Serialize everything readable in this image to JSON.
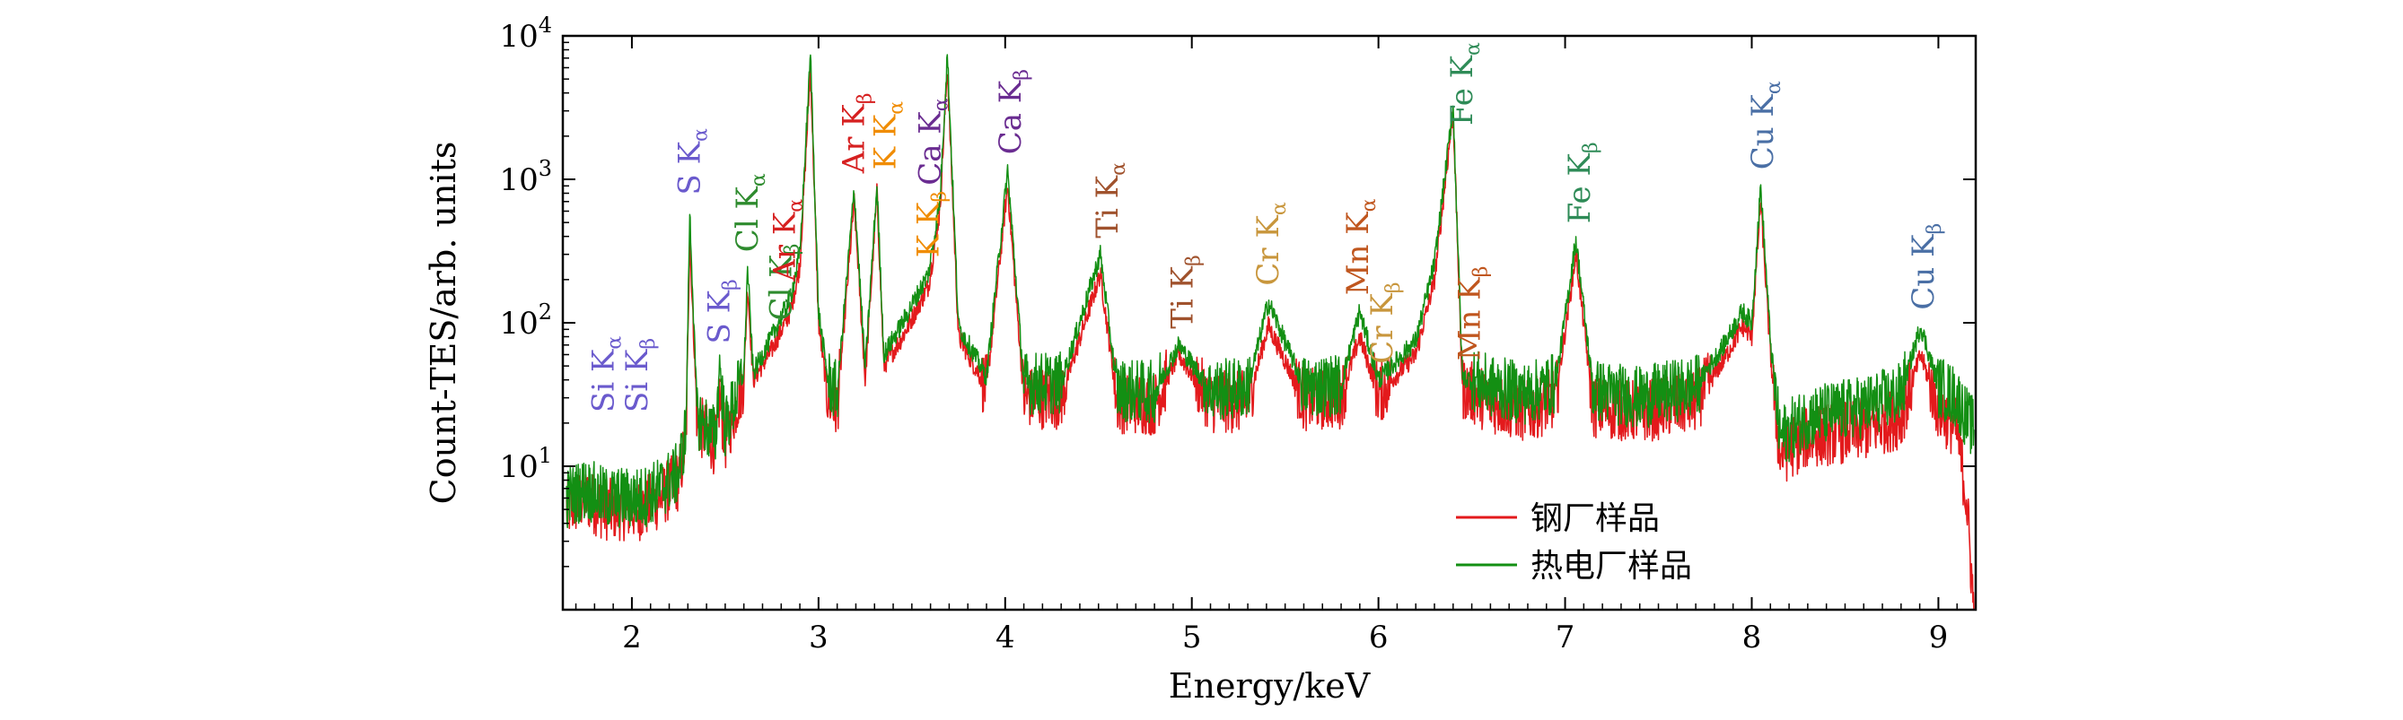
{
  "chart_data": {
    "type": "line",
    "title": "",
    "xlabel": "Energy/keV",
    "ylabel": "Count-TES/arb. units",
    "xlim": [
      1.63,
      9.2
    ],
    "ylim_log10": [
      0.0,
      4.0
    ],
    "yscale": "log",
    "x_ticks": [
      "2",
      "3",
      "4",
      "5",
      "6",
      "7",
      "8",
      "9"
    ],
    "y_ticks": [
      {
        "base": "10",
        "exp": "1"
      },
      {
        "base": "10",
        "exp": "2"
      },
      {
        "base": "10",
        "exp": "3"
      },
      {
        "base": "10",
        "exp": "4"
      }
    ],
    "legend_position": "bottom-right",
    "series": [
      {
        "name": "钢厂样品",
        "color": "#e31a1c",
        "x": [
          1.65,
          1.75,
          1.85,
          1.95,
          2.05,
          2.15,
          2.25,
          2.29,
          2.31,
          2.35,
          2.45,
          2.47,
          2.5,
          2.6,
          2.62,
          2.65,
          2.75,
          2.85,
          2.9,
          2.957,
          3.0,
          3.05,
          3.1,
          3.191,
          3.25,
          3.313,
          3.35,
          3.45,
          3.589,
          3.65,
          3.69,
          3.75,
          3.9,
          4.013,
          4.1,
          4.3,
          4.51,
          4.6,
          4.8,
          4.93,
          5.1,
          5.3,
          5.41,
          5.6,
          5.8,
          5.899,
          6.0,
          6.2,
          6.3,
          6.4,
          6.45,
          6.6,
          6.8,
          6.95,
          7.058,
          7.15,
          7.4,
          7.7,
          7.85,
          7.95,
          8.0,
          8.048,
          8.1,
          8.15,
          8.3,
          8.6,
          8.8,
          8.905,
          9.0,
          9.1,
          9.15,
          9.19
        ],
        "values": [
          5,
          6,
          5,
          5,
          5,
          6,
          8,
          15,
          400,
          20,
          14,
          30,
          15,
          40,
          180,
          40,
          65,
          120,
          250,
          6000,
          100,
          30,
          25,
          700,
          40,
          800,
          50,
          80,
          180,
          600,
          6000,
          80,
          35,
          900,
          30,
          30,
          220,
          28,
          27,
          60,
          28,
          28,
          95,
          29,
          30,
          80,
          32,
          60,
          200,
          3000,
          35,
          28,
          24,
          30,
          300,
          26,
          24,
          28,
          55,
          95,
          80,
          700,
          60,
          12,
          16,
          18,
          22,
          60,
          25,
          18,
          6,
          1
        ]
      },
      {
        "name": "热电厂样品",
        "color": "#138f13",
        "x": [
          1.65,
          1.75,
          1.85,
          1.95,
          2.05,
          2.15,
          2.25,
          2.29,
          2.31,
          2.35,
          2.45,
          2.47,
          2.5,
          2.6,
          2.62,
          2.65,
          2.75,
          2.85,
          2.9,
          2.957,
          3.0,
          3.05,
          3.1,
          3.191,
          3.25,
          3.313,
          3.35,
          3.45,
          3.589,
          3.65,
          3.69,
          3.75,
          3.9,
          4.013,
          4.1,
          4.3,
          4.51,
          4.6,
          4.8,
          4.93,
          5.1,
          5.3,
          5.41,
          5.6,
          5.8,
          5.899,
          6.0,
          6.2,
          6.3,
          6.4,
          6.45,
          6.6,
          6.8,
          6.95,
          7.058,
          7.15,
          7.4,
          7.7,
          7.85,
          7.95,
          8.0,
          8.048,
          8.1,
          8.15,
          8.3,
          8.6,
          8.8,
          8.905,
          9.0,
          9.1,
          9.15,
          9.19
        ],
        "values": [
          6,
          7,
          6,
          6,
          6,
          7,
          9,
          18,
          600,
          22,
          16,
          55,
          18,
          45,
          240,
          45,
          80,
          150,
          300,
          7500,
          120,
          40,
          32,
          850,
          48,
          900,
          60,
          100,
          220,
          700,
          7500,
          95,
          42,
          1150,
          38,
          38,
          300,
          34,
          33,
          70,
          34,
          35,
          140,
          36,
          37,
          120,
          40,
          75,
          260,
          3200,
          42,
          36,
          32,
          38,
          380,
          34,
          30,
          36,
          70,
          120,
          100,
          900,
          75,
          16,
          22,
          26,
          32,
          95,
          36,
          30,
          22,
          18
        ]
      }
    ],
    "peak_labels": [
      {
        "text": "Si K",
        "sub": "α",
        "color": "#6a5acd",
        "x": 1.85
      },
      {
        "text": "Si K",
        "sub": "β",
        "color": "#6a5acd",
        "x": 2.03
      },
      {
        "text": "S K",
        "sub": "α",
        "color": "#6a5acd",
        "x": 2.31
      },
      {
        "text": "S K",
        "sub": "β",
        "color": "#6a5acd",
        "x": 2.47
      },
      {
        "text": "Cl K",
        "sub": "α",
        "color": "#2e8b2e",
        "x": 2.62
      },
      {
        "text": "Cl K",
        "sub": "β",
        "color": "#2e8b2e",
        "x": 2.8
      },
      {
        "text": "Ar K",
        "sub": "α",
        "color": "#d62020",
        "x": 2.82
      },
      {
        "text": "Ar K",
        "sub": "β",
        "color": "#d62020",
        "x": 3.19
      },
      {
        "text": "K K",
        "sub": "α",
        "color": "#f08c00",
        "x": 3.36
      },
      {
        "text": "K K",
        "sub": "β",
        "color": "#f08c00",
        "x": 3.59
      },
      {
        "text": "Ca K",
        "sub": "α",
        "color": "#6a2c91",
        "x": 3.6
      },
      {
        "text": "Ca K",
        "sub": "β",
        "color": "#6a2c91",
        "x": 4.03
      },
      {
        "text": "Ti K",
        "sub": "α",
        "color": "#a0522d",
        "x": 4.55
      },
      {
        "text": "Ti K",
        "sub": "β",
        "color": "#a0522d",
        "x": 4.95
      },
      {
        "text": "Cr K",
        "sub": "α",
        "color": "#c8963c",
        "x": 5.41
      },
      {
        "text": "Cr K",
        "sub": "β",
        "color": "#c8963c",
        "x": 6.02
      },
      {
        "text": "Mn K",
        "sub": "α",
        "color": "#c0561e",
        "x": 5.89
      },
      {
        "text": "Mn K",
        "sub": "β",
        "color": "#c0561e",
        "x": 6.49
      },
      {
        "text": "Fe K",
        "sub": "α",
        "color": "#2e8b57",
        "x": 6.45
      },
      {
        "text": "Fe K",
        "sub": "β",
        "color": "#2e8b57",
        "x": 7.08
      },
      {
        "text": "Cu K",
        "sub": "α",
        "color": "#4a6fa5",
        "x": 8.06
      },
      {
        "text": "Cu K",
        "sub": "β",
        "color": "#4a6fa5",
        "x": 8.92
      }
    ]
  }
}
